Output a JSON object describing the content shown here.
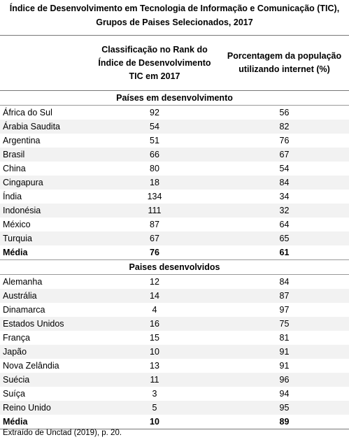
{
  "title": [
    "Índice de Desenvolvimento em Tecnologia de Informação e Comunicação (TIC),",
    "Grupos de Paises Selecionados, 2017"
  ],
  "table": {
    "columns": [
      [
        ""
      ],
      [
        "Classificação no Rank do",
        "Índice  de Desenvolvimento",
        "TIC em 2017"
      ],
      [
        "Porcentagem da população",
        "utilizando internet (%)"
      ]
    ],
    "sections": [
      {
        "title": "Países em desenvolvimento",
        "rows": [
          [
            "África do Sul",
            "92",
            "56"
          ],
          [
            "Árabia Saudita",
            "54",
            "82"
          ],
          [
            "Argentina",
            "51",
            "76"
          ],
          [
            "Brasil",
            "66",
            "67"
          ],
          [
            "China",
            "80",
            "54"
          ],
          [
            "Cingapura",
            "18",
            "84"
          ],
          [
            "Índia",
            "134",
            "34"
          ],
          [
            "Indonésia",
            "111",
            "32"
          ],
          [
            "México",
            "87",
            "64"
          ],
          [
            "Turquia",
            "67",
            "65"
          ]
        ],
        "summary": [
          "Média",
          "76",
          "61"
        ]
      },
      {
        "title": "Paises desenvolvidos",
        "rows": [
          [
            "Alemanha",
            "12",
            "84"
          ],
          [
            "Austrália",
            "14",
            "87"
          ],
          [
            "Dinamarca",
            "4",
            "97"
          ],
          [
            "Estados Unidos",
            "16",
            "75"
          ],
          [
            "França",
            "15",
            "81"
          ],
          [
            "Japão",
            "10",
            "91"
          ],
          [
            "Nova Zelândia",
            "13",
            "91"
          ],
          [
            "Suécia",
            "11",
            "96"
          ],
          [
            "Suíça",
            "3",
            "94"
          ],
          [
            "Reino Unido",
            "5",
            "95"
          ]
        ],
        "summary": [
          "Média",
          "10",
          "89"
        ]
      }
    ]
  },
  "note": "Extraído de Unctad (2019), p. 20."
}
